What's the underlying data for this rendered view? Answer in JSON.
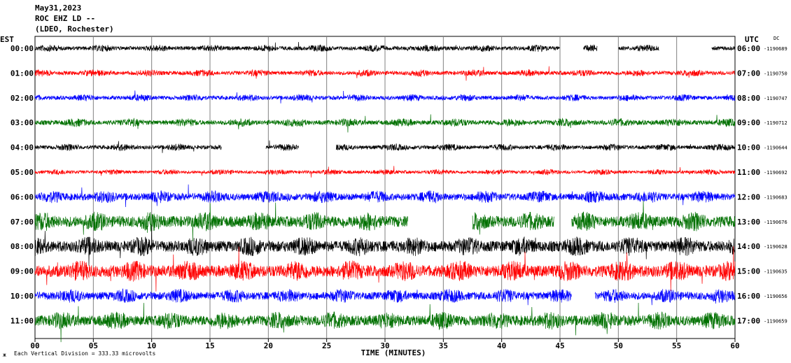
{
  "header": {
    "date": "May31,2023",
    "station": "ROC EHZ LD --",
    "location": "(LDEO, Rochester)"
  },
  "left_label": "EST",
  "right_label": "UTC",
  "dc_label": "DC",
  "footer": {
    "scale_text": "Each Vertical Division =  333.33 microvolts",
    "mark": "ж"
  },
  "chart_data": {
    "type": "line",
    "title": "",
    "xlabel": "TIME (MINUTES)",
    "ylabel": "",
    "xlim": [
      0,
      60
    ],
    "x_ticks": [
      "00",
      "05",
      "10",
      "15",
      "20",
      "25",
      "30",
      "35",
      "40",
      "45",
      "50",
      "55",
      "60"
    ],
    "grid": true,
    "trace_colors": [
      "#000000",
      "#ff0000",
      "#0000ff",
      "#007000"
    ],
    "rows": [
      {
        "est": "00:00",
        "utc": "06:00",
        "dc": "-1190689",
        "color": "#000000",
        "amp": 5,
        "gaps": [
          [
            45,
            47
          ],
          [
            48.2,
            50
          ],
          [
            53.5,
            58
          ]
        ]
      },
      {
        "est": "01:00",
        "utc": "07:00",
        "dc": "-1190750",
        "color": "#ff0000",
        "amp": 5,
        "gaps": []
      },
      {
        "est": "02:00",
        "utc": "08:00",
        "dc": "-1190747",
        "color": "#0000ff",
        "amp": 5,
        "gaps": []
      },
      {
        "est": "03:00",
        "utc": "09:00",
        "dc": "-1190712",
        "color": "#007000",
        "amp": 6,
        "gaps": []
      },
      {
        "est": "04:00",
        "utc": "10:00",
        "dc": "-1190644",
        "color": "#000000",
        "amp": 5,
        "gaps": [
          [
            16,
            19.8
          ],
          [
            22.6,
            25.8
          ]
        ]
      },
      {
        "est": "05:00",
        "utc": "11:00",
        "dc": "-1190692",
        "color": "#ff0000",
        "amp": 4,
        "gaps": []
      },
      {
        "est": "06:00",
        "utc": "12:00",
        "dc": "-1190683",
        "color": "#0000ff",
        "amp": 9,
        "gaps": []
      },
      {
        "est": "07:00",
        "utc": "13:00",
        "dc": "-1190676",
        "color": "#007000",
        "amp": 14,
        "gaps": [
          [
            32,
            37.5
          ],
          [
            44.5,
            46
          ]
        ]
      },
      {
        "est": "08:00",
        "utc": "14:00",
        "dc": "-1190628",
        "color": "#000000",
        "amp": 14,
        "gaps": []
      },
      {
        "est": "09:00",
        "utc": "15:00",
        "dc": "-1190635",
        "color": "#ff0000",
        "amp": 15,
        "gaps": []
      },
      {
        "est": "10:00",
        "utc": "16:00",
        "dc": "-1190656",
        "color": "#0000ff",
        "amp": 10,
        "gaps": [
          [
            46,
            48
          ]
        ]
      },
      {
        "est": "11:00",
        "utc": "17:00",
        "dc": "-1190659",
        "color": "#007000",
        "amp": 13,
        "gaps": []
      }
    ]
  }
}
